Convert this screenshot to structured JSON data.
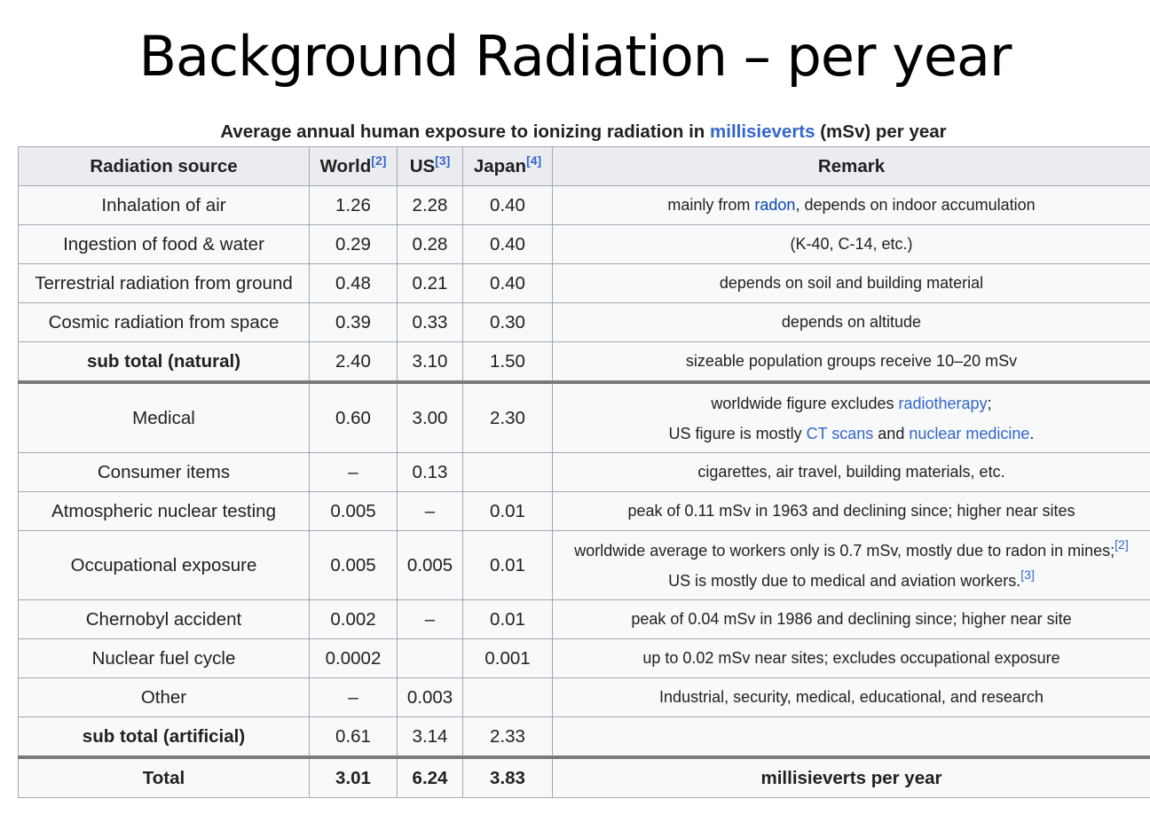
{
  "title": "Background Radiation – per year",
  "caption": {
    "prefix": "Average annual human exposure to ionizing radiation in ",
    "link": "millisieverts",
    "suffix": " (mSv) per year"
  },
  "headers": {
    "source": "Radiation source",
    "world": "World",
    "world_ref": "[2]",
    "us": "US",
    "us_ref": "[3]",
    "japan": "Japan",
    "japan_ref": "[4]",
    "remark": "Remark"
  },
  "rows": [
    {
      "source": "Inhalation of air",
      "world": "1.26",
      "us": "2.28",
      "japan": "0.40",
      "remark": {
        "a": "mainly from ",
        "link": "radon",
        "b": ", depends on indoor accumulation"
      }
    },
    {
      "source": "Ingestion of food & water",
      "world": "0.29",
      "us": "0.28",
      "japan": "0.40",
      "remark": "(K-40, C-14, etc.)"
    },
    {
      "source": "Terrestrial radiation from ground",
      "world": "0.48",
      "us": "0.21",
      "japan": "0.40",
      "remark": "depends on soil and building material"
    },
    {
      "source": "Cosmic radiation from space",
      "world": "0.39",
      "us": "0.33",
      "japan": "0.30",
      "remark": "depends on altitude"
    },
    {
      "source": "sub total (natural)",
      "world": "2.40",
      "us": "3.10",
      "japan": "1.50",
      "remark": "sizeable population groups receive 10–20 mSv"
    },
    {
      "source": "Medical",
      "world": "0.60",
      "us": "3.00",
      "japan": "2.30",
      "remark": {
        "line1_a": "worldwide figure excludes ",
        "line1_link": "radiotherapy",
        "line1_b": ";",
        "line2_a": "US figure is mostly ",
        "line2_link1": "CT scans",
        "line2_b": " and ",
        "line2_link2": "nuclear medicine",
        "line2_c": "."
      }
    },
    {
      "source": "Consumer items",
      "world": "–",
      "us": "0.13",
      "japan": "",
      "remark": "cigarettes, air travel, building materials, etc."
    },
    {
      "source": "Atmospheric nuclear testing",
      "world": "0.005",
      "us": "–",
      "japan": "0.01",
      "remark": "peak of 0.11 mSv in 1963 and declining since; higher near sites"
    },
    {
      "source": "Occupational exposure",
      "world": "0.005",
      "us": "0.005",
      "japan": "0.01",
      "remark": {
        "line1": "worldwide average to workers only is 0.7 mSv, mostly due to radon in mines;",
        "line1_ref": "[2]",
        "line2": "US is mostly due to medical and aviation workers.",
        "line2_ref": "[3]"
      }
    },
    {
      "source": "Chernobyl accident",
      "world": "0.002",
      "us": "–",
      "japan": "0.01",
      "remark": "peak of 0.04 mSv in 1986 and declining since; higher near site"
    },
    {
      "source": "Nuclear fuel cycle",
      "world": "0.0002",
      "us": "",
      "japan": "0.001",
      "remark": "up to 0.02 mSv near sites; excludes occupational exposure"
    },
    {
      "source": "Other",
      "world": "–",
      "us": "0.003",
      "japan": "",
      "remark": "Industrial, security, medical, educational, and research"
    },
    {
      "source": "sub total (artificial)",
      "world": "0.61",
      "us": "3.14",
      "japan": "2.33",
      "remark": ""
    },
    {
      "source": "Total",
      "world": "3.01",
      "us": "6.24",
      "japan": "3.83",
      "remark": "millisieverts per year"
    }
  ]
}
